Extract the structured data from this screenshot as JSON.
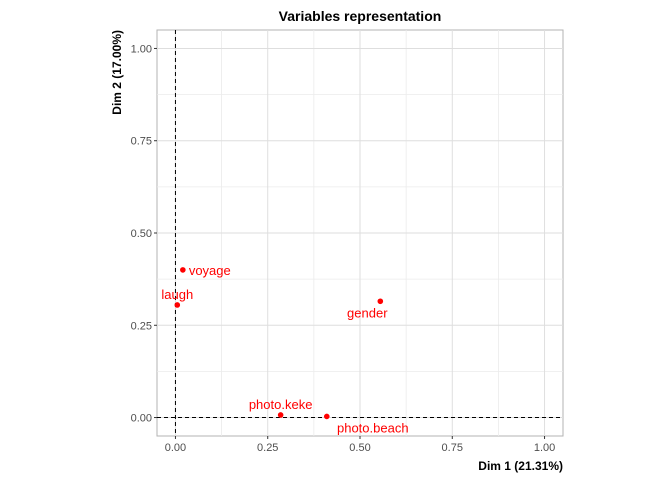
{
  "chart_data": {
    "type": "scatter",
    "title": "Variables representation",
    "xlabel": "Dim 1 (21.31%)",
    "ylabel": "Dim 2 (17.00%)",
    "xlim": [
      -0.05,
      1.05
    ],
    "ylim": [
      -0.05,
      1.05
    ],
    "xticks": [
      0,
      0.25,
      0.5,
      0.75,
      1
    ],
    "yticks": [
      0,
      0.25,
      0.5,
      0.75,
      1
    ],
    "xtick_labels": [
      "0.00",
      "0.25",
      "0.50",
      "0.75",
      "1.00"
    ],
    "ytick_labels": [
      "0.00",
      "0.25",
      "0.50",
      "0.75",
      "1.00"
    ],
    "grid": true,
    "reference_lines": {
      "x": 0,
      "y": 0,
      "style": "dashed"
    },
    "point_color": "#ff0000",
    "points": [
      {
        "label": "voyage",
        "x": 0.02,
        "y": 0.4,
        "label_pos": "right"
      },
      {
        "label": "laugh",
        "x": 0.005,
        "y": 0.305,
        "label_pos": "above"
      },
      {
        "label": "gender",
        "x": 0.555,
        "y": 0.315,
        "label_pos": "below"
      },
      {
        "label": "photo.keke",
        "x": 0.285,
        "y": 0.007,
        "label_pos": "above"
      },
      {
        "label": "photo.beach",
        "x": 0.41,
        "y": 0.003,
        "label_pos": "below-right"
      }
    ]
  }
}
